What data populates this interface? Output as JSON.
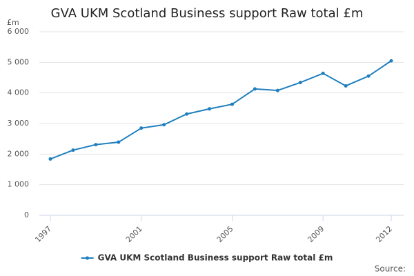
{
  "chart_data": {
    "type": "line",
    "title": "GVA UKM Scotland Business support Raw total £m",
    "y_axis_label": "£m",
    "source": "Source:",
    "x": [
      1997,
      1998,
      1999,
      2000,
      2001,
      2002,
      2003,
      2004,
      2005,
      2006,
      2007,
      2008,
      2009,
      2010,
      2011,
      2012
    ],
    "series": [
      {
        "name": "GVA UKM Scotland Business support Raw total £m",
        "color": "#1f7fbf",
        "values": [
          1840,
          2130,
          2310,
          2390,
          2850,
          2960,
          3310,
          3480,
          3630,
          4130,
          4080,
          4340,
          4640,
          4230,
          4550,
          5050
        ]
      }
    ],
    "xlim": [
      1997,
      2012
    ],
    "xticks": [
      1997,
      2001,
      2005,
      2009,
      2012
    ],
    "ylim": [
      0,
      6000
    ],
    "yticks": [
      0,
      {
        "value": 1000,
        "label": "1 000"
      },
      {
        "value": 2000,
        "label": "2 000"
      },
      {
        "value": 3000,
        "label": "3 000"
      },
      {
        "value": 4000,
        "label": "4 000"
      },
      {
        "value": 5000,
        "label": "5 000"
      },
      {
        "value": 6000,
        "label": "6 000"
      }
    ],
    "grid": true,
    "legend": "bottom"
  }
}
